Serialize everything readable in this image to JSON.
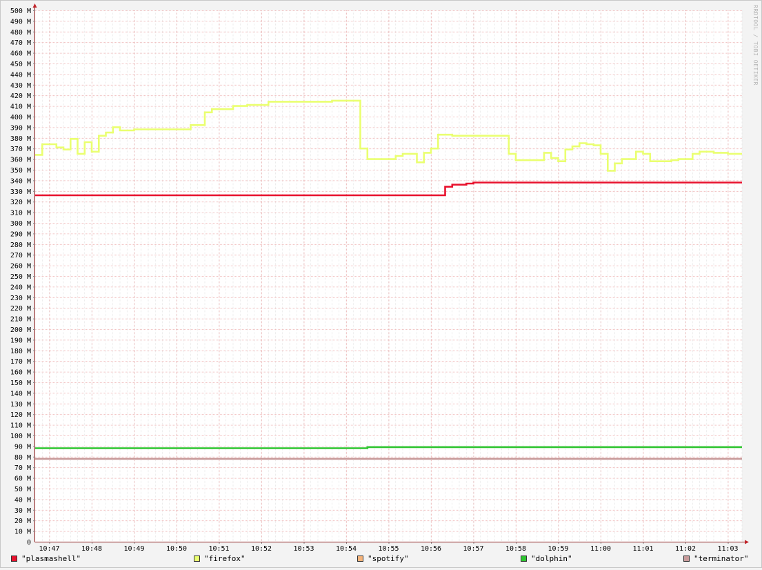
{
  "chart_data": {
    "type": "line",
    "title": "",
    "xlabel": "",
    "ylabel": "",
    "watermark": "RRDTOOL / TOBI OETIKER",
    "ylim": [
      0,
      500
    ],
    "y_tick_step": 10,
    "y_tick_suffix": " M",
    "y_unit": "MB",
    "xlim": [
      "10:46:40",
      "11:03:20"
    ],
    "x_ticks": [
      "10:47",
      "10:48",
      "10:49",
      "10:50",
      "10:51",
      "10:52",
      "10:53",
      "10:54",
      "10:55",
      "10:56",
      "10:57",
      "10:58",
      "10:59",
      "11:00",
      "11:01",
      "11:02",
      "11:03"
    ],
    "grid": true,
    "legend_position": "bottom",
    "series": [
      {
        "name": "\"plasmashell\"",
        "color": "#e8112d",
        "points": [
          [
            "10:46:40",
            326
          ],
          [
            "10:56:20",
            326
          ],
          [
            "10:56:20",
            334
          ],
          [
            "10:56:30",
            334
          ],
          [
            "10:56:30",
            336
          ],
          [
            "10:56:50",
            336
          ],
          [
            "10:56:50",
            337
          ],
          [
            "10:57:00",
            337
          ],
          [
            "10:57:00",
            338
          ],
          [
            "11:03:20",
            338
          ]
        ]
      },
      {
        "name": "\"firefox\"",
        "color": "#eaff70",
        "points": [
          [
            "10:46:40",
            364
          ],
          [
            "10:46:50",
            364
          ],
          [
            "10:46:50",
            374
          ],
          [
            "10:47:10",
            374
          ],
          [
            "10:47:10",
            371
          ],
          [
            "10:47:20",
            371
          ],
          [
            "10:47:20",
            369
          ],
          [
            "10:47:30",
            369
          ],
          [
            "10:47:30",
            379
          ],
          [
            "10:47:40",
            379
          ],
          [
            "10:47:40",
            365
          ],
          [
            "10:47:50",
            365
          ],
          [
            "10:47:50",
            376
          ],
          [
            "10:48:00",
            376
          ],
          [
            "10:48:00",
            367
          ],
          [
            "10:48:10",
            367
          ],
          [
            "10:48:10",
            382
          ],
          [
            "10:48:20",
            382
          ],
          [
            "10:48:20",
            385
          ],
          [
            "10:48:30",
            385
          ],
          [
            "10:48:30",
            390
          ],
          [
            "10:48:40",
            390
          ],
          [
            "10:48:40",
            387
          ],
          [
            "10:49:00",
            387
          ],
          [
            "10:49:00",
            388
          ],
          [
            "10:50:20",
            388
          ],
          [
            "10:50:20",
            392
          ],
          [
            "10:50:40",
            392
          ],
          [
            "10:50:40",
            404
          ],
          [
            "10:50:50",
            404
          ],
          [
            "10:50:50",
            407
          ],
          [
            "10:51:20",
            407
          ],
          [
            "10:51:20",
            410
          ],
          [
            "10:51:40",
            410
          ],
          [
            "10:51:40",
            411
          ],
          [
            "10:52:10",
            411
          ],
          [
            "10:52:10",
            414
          ],
          [
            "10:53:40",
            414
          ],
          [
            "10:53:40",
            415
          ],
          [
            "10:54:20",
            415
          ],
          [
            "10:54:20",
            370
          ],
          [
            "10:54:30",
            370
          ],
          [
            "10:54:30",
            360
          ],
          [
            "10:55:10",
            360
          ],
          [
            "10:55:10",
            363
          ],
          [
            "10:55:20",
            363
          ],
          [
            "10:55:20",
            365
          ],
          [
            "10:55:40",
            365
          ],
          [
            "10:55:40",
            357
          ],
          [
            "10:55:50",
            357
          ],
          [
            "10:55:50",
            366
          ],
          [
            "10:56:00",
            366
          ],
          [
            "10:56:00",
            370
          ],
          [
            "10:56:10",
            370
          ],
          [
            "10:56:10",
            383
          ],
          [
            "10:56:30",
            383
          ],
          [
            "10:56:30",
            382
          ],
          [
            "10:57:50",
            382
          ],
          [
            "10:57:50",
            365
          ],
          [
            "10:58:00",
            365
          ],
          [
            "10:58:00",
            359
          ],
          [
            "10:58:40",
            359
          ],
          [
            "10:58:40",
            366
          ],
          [
            "10:58:50",
            366
          ],
          [
            "10:58:50",
            361
          ],
          [
            "10:59:00",
            361
          ],
          [
            "10:59:00",
            358
          ],
          [
            "10:59:10",
            358
          ],
          [
            "10:59:10",
            369
          ],
          [
            "10:59:20",
            369
          ],
          [
            "10:59:20",
            372
          ],
          [
            "10:59:30",
            372
          ],
          [
            "10:59:30",
            375
          ],
          [
            "10:59:40",
            375
          ],
          [
            "10:59:40",
            374
          ],
          [
            "10:59:50",
            374
          ],
          [
            "10:59:50",
            373
          ],
          [
            "11:00:00",
            373
          ],
          [
            "11:00:00",
            365
          ],
          [
            "11:00:10",
            365
          ],
          [
            "11:00:10",
            349
          ],
          [
            "11:00:20",
            349
          ],
          [
            "11:00:20",
            356
          ],
          [
            "11:00:30",
            356
          ],
          [
            "11:00:30",
            360
          ],
          [
            "11:00:50",
            360
          ],
          [
            "11:00:50",
            367
          ],
          [
            "11:01:00",
            367
          ],
          [
            "11:01:00",
            365
          ],
          [
            "11:01:10",
            365
          ],
          [
            "11:01:10",
            358
          ],
          [
            "11:01:40",
            358
          ],
          [
            "11:01:40",
            359
          ],
          [
            "11:01:50",
            359
          ],
          [
            "11:01:50",
            360
          ],
          [
            "11:02:10",
            360
          ],
          [
            "11:02:10",
            365
          ],
          [
            "11:02:20",
            365
          ],
          [
            "11:02:20",
            367
          ],
          [
            "11:02:40",
            367
          ],
          [
            "11:02:40",
            366
          ],
          [
            "11:03:00",
            366
          ],
          [
            "11:03:00",
            365
          ],
          [
            "11:03:20",
            365
          ]
        ]
      },
      {
        "name": "\"spotify\"",
        "color": "#f5b37a",
        "points": []
      },
      {
        "name": "\"dolphin\"",
        "color": "#2ec530",
        "points": [
          [
            "10:46:40",
            88
          ],
          [
            "10:54:30",
            88
          ],
          [
            "10:54:30",
            89
          ],
          [
            "11:03:20",
            89
          ]
        ]
      },
      {
        "name": "\"terminator\"",
        "color": "#c79a9a",
        "points": [
          [
            "10:46:40",
            78
          ],
          [
            "11:03:20",
            78
          ]
        ]
      }
    ]
  }
}
